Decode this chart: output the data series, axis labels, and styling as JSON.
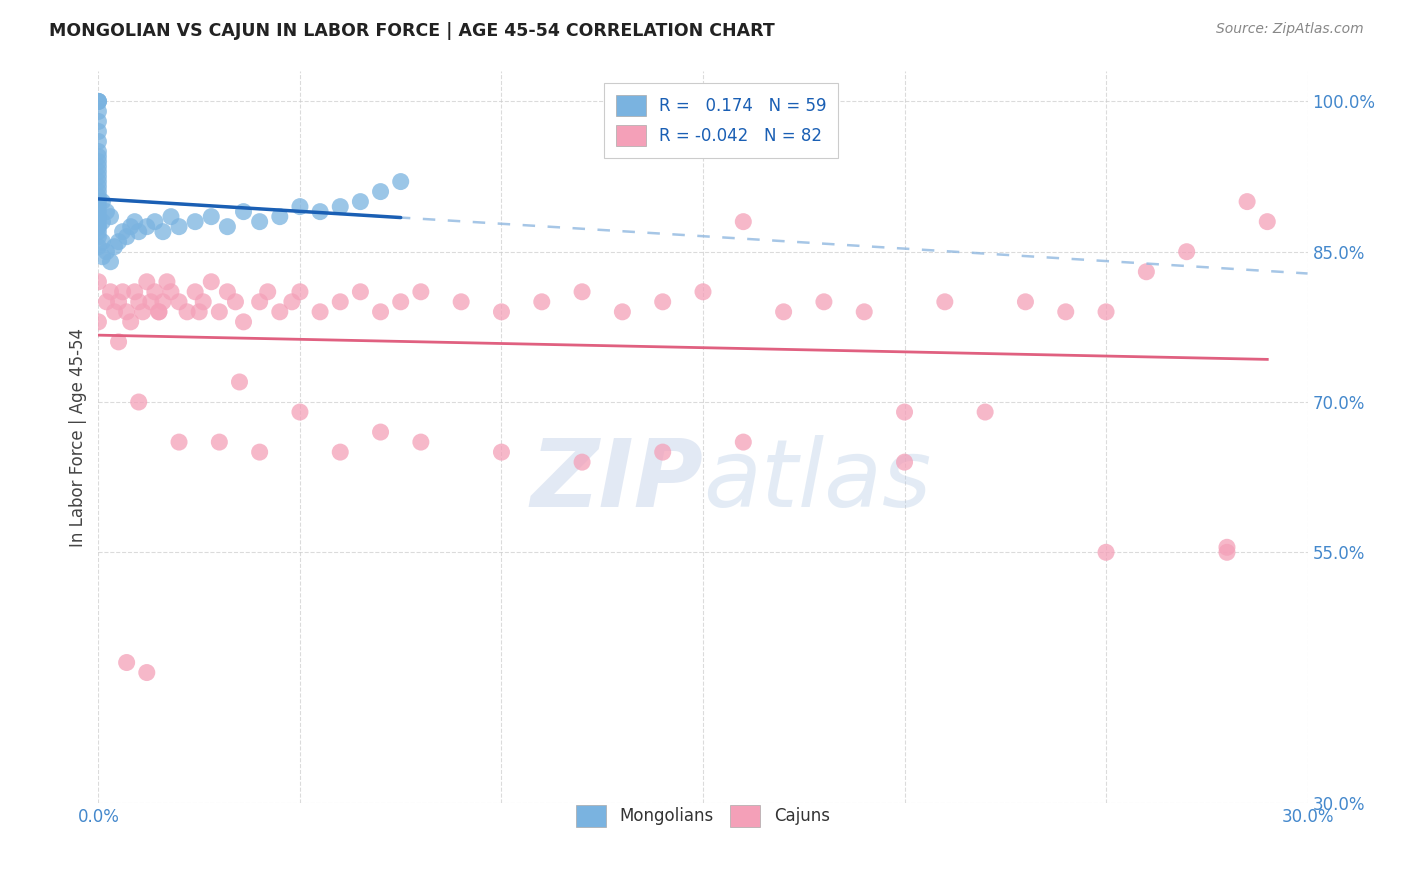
{
  "title": "MONGOLIAN VS CAJUN IN LABOR FORCE | AGE 45-54 CORRELATION CHART",
  "source": "Source: ZipAtlas.com",
  "ylabel": "In Labor Force | Age 45-54",
  "xlim": [
    0.0,
    0.3
  ],
  "ylim": [
    0.3,
    1.03
  ],
  "xticks": [
    0.0,
    0.05,
    0.1,
    0.15,
    0.2,
    0.25,
    0.3
  ],
  "xtick_labels": [
    "0.0%",
    "",
    "",
    "",
    "",
    "",
    "30.0%"
  ],
  "yticks": [
    0.3,
    0.55,
    0.7,
    0.85,
    1.0
  ],
  "ytick_labels": [
    "30.0%",
    "55.0%",
    "70.0%",
    "85.0%",
    "100.0%"
  ],
  "mongolian_color": "#7ab3e0",
  "cajun_color": "#f4a0b8",
  "mongolian_line_color": "#1a5fb4",
  "cajun_line_color": "#e06080",
  "mongolian_dashed_color": "#90b8e0",
  "legend_r_mongolian": "0.174",
  "legend_n_mongolian": "59",
  "legend_r_cajun": "-0.042",
  "legend_n_cajun": "82",
  "watermark_zip": "ZIP",
  "watermark_atlas": "atlas",
  "background_color": "#ffffff",
  "grid_color": "#cccccc",
  "mongolian_x": [
    0.0,
    0.0,
    0.0,
    0.0,
    0.0,
    0.0,
    0.0,
    0.0,
    0.0,
    0.0,
    0.0,
    0.0,
    0.0,
    0.0,
    0.0,
    0.0,
    0.0,
    0.0,
    0.0,
    0.0,
    0.0,
    0.0,
    0.0,
    0.0,
    0.0,
    0.0,
    0.0,
    0.001,
    0.001,
    0.001,
    0.001,
    0.002,
    0.002,
    0.003,
    0.003,
    0.004,
    0.005,
    0.006,
    0.007,
    0.008,
    0.009,
    0.01,
    0.012,
    0.014,
    0.016,
    0.018,
    0.02,
    0.024,
    0.028,
    0.032,
    0.036,
    0.04,
    0.045,
    0.05,
    0.055,
    0.06,
    0.065,
    0.07,
    0.075
  ],
  "mongolian_y": [
    0.87,
    0.875,
    0.88,
    0.885,
    0.89,
    0.895,
    0.9,
    0.905,
    0.91,
    0.915,
    0.92,
    0.925,
    0.93,
    0.935,
    0.94,
    0.945,
    0.95,
    0.96,
    0.97,
    0.98,
    0.99,
    1.0,
    1.0,
    1.0,
    0.855,
    0.865,
    0.875,
    0.845,
    0.86,
    0.88,
    0.9,
    0.85,
    0.89,
    0.84,
    0.885,
    0.855,
    0.86,
    0.87,
    0.865,
    0.875,
    0.88,
    0.87,
    0.875,
    0.88,
    0.87,
    0.885,
    0.875,
    0.88,
    0.885,
    0.875,
    0.89,
    0.88,
    0.885,
    0.895,
    0.89,
    0.895,
    0.9,
    0.91,
    0.92
  ],
  "cajun_x": [
    0.0,
    0.0,
    0.002,
    0.003,
    0.004,
    0.005,
    0.006,
    0.007,
    0.008,
    0.009,
    0.01,
    0.011,
    0.012,
    0.013,
    0.014,
    0.015,
    0.016,
    0.017,
    0.018,
    0.02,
    0.022,
    0.024,
    0.026,
    0.028,
    0.03,
    0.032,
    0.034,
    0.036,
    0.04,
    0.042,
    0.045,
    0.048,
    0.05,
    0.055,
    0.06,
    0.065,
    0.07,
    0.075,
    0.08,
    0.09,
    0.1,
    0.11,
    0.12,
    0.13,
    0.14,
    0.15,
    0.16,
    0.17,
    0.18,
    0.19,
    0.2,
    0.21,
    0.22,
    0.23,
    0.24,
    0.25,
    0.26,
    0.27,
    0.28,
    0.285,
    0.29,
    0.005,
    0.01,
    0.015,
    0.02,
    0.025,
    0.03,
    0.035,
    0.04,
    0.05,
    0.06,
    0.07,
    0.08,
    0.1,
    0.12,
    0.14,
    0.16,
    0.2,
    0.25,
    0.28,
    0.007,
    0.012
  ],
  "cajun_y": [
    0.82,
    0.78,
    0.8,
    0.81,
    0.79,
    0.8,
    0.81,
    0.79,
    0.78,
    0.81,
    0.8,
    0.79,
    0.82,
    0.8,
    0.81,
    0.79,
    0.8,
    0.82,
    0.81,
    0.8,
    0.79,
    0.81,
    0.8,
    0.82,
    0.79,
    0.81,
    0.8,
    0.78,
    0.8,
    0.81,
    0.79,
    0.8,
    0.81,
    0.79,
    0.8,
    0.81,
    0.79,
    0.8,
    0.81,
    0.8,
    0.79,
    0.8,
    0.81,
    0.79,
    0.8,
    0.81,
    0.88,
    0.79,
    0.8,
    0.79,
    0.69,
    0.8,
    0.69,
    0.8,
    0.79,
    0.79,
    0.83,
    0.85,
    0.55,
    0.9,
    0.88,
    0.76,
    0.7,
    0.79,
    0.66,
    0.79,
    0.66,
    0.72,
    0.65,
    0.69,
    0.65,
    0.67,
    0.66,
    0.65,
    0.64,
    0.65,
    0.66,
    0.64,
    0.55,
    0.555,
    0.44,
    0.43
  ]
}
